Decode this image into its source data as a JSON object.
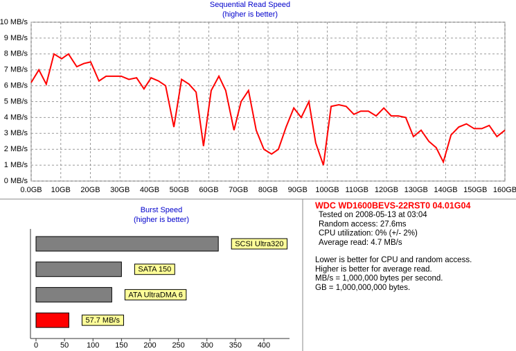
{
  "chart_data": [
    {
      "type": "line",
      "title": "Sequential Read Speed",
      "subtitle": "(higher is better)",
      "color": "#ff0000",
      "grid": true,
      "x": [
        0,
        2.6,
        5.1,
        7.7,
        10.3,
        12.6,
        15.4,
        17.8,
        20.1,
        22.9,
        25.3,
        27.8,
        30.4,
        33,
        35.6,
        38.1,
        40.5,
        43,
        45.4,
        48.2,
        50.8,
        53.3,
        55.7,
        58.2,
        60.8,
        63.4,
        65.7,
        68.5,
        70.9,
        73.4,
        76,
        78.6,
        81.2,
        83.5,
        86.1,
        88.7,
        91.2,
        93.8,
        96.1,
        98.7,
        101.3,
        103.9,
        106.4,
        109,
        111.3,
        113.9,
        116.5,
        119.1,
        121.6,
        124,
        126.5,
        129.1,
        131.7,
        134.3,
        136.8,
        139.2,
        141.8,
        144.4,
        147,
        149.6,
        152.2,
        154.7,
        157.3,
        160
      ],
      "values": [
        6.2,
        7.0,
        6.1,
        8.0,
        7.7,
        8.0,
        7.2,
        7.4,
        7.5,
        6.3,
        6.6,
        6.6,
        6.6,
        6.4,
        6.5,
        5.8,
        6.5,
        6.3,
        6.0,
        3.4,
        6.4,
        6.1,
        5.6,
        2.2,
        5.7,
        6.6,
        5.7,
        3.2,
        5.0,
        5.7,
        3.2,
        2.0,
        1.7,
        2.0,
        3.4,
        4.6,
        4.0,
        5.0,
        2.4,
        1.0,
        4.7,
        4.8,
        4.7,
        4.2,
        4.4,
        4.4,
        4.1,
        4.6,
        4.1,
        4.1,
        4.0,
        2.8,
        3.2,
        2.5,
        2.1,
        1.2,
        2.9,
        3.4,
        3.6,
        3.3,
        3.3,
        3.5,
        2.8,
        3.2
      ],
      "xlim": [
        0,
        160
      ],
      "xticks": [
        {
          "value": 0,
          "label": "0.0GB"
        },
        {
          "value": 10,
          "label": "10GB"
        },
        {
          "value": 20,
          "label": "20GB"
        },
        {
          "value": 30,
          "label": "30GB"
        },
        {
          "value": 40,
          "label": "40GB"
        },
        {
          "value": 50,
          "label": "50GB"
        },
        {
          "value": 60,
          "label": "60GB"
        },
        {
          "value": 70,
          "label": "70GB"
        },
        {
          "value": 80,
          "label": "80GB"
        },
        {
          "value": 90,
          "label": "90GB"
        },
        {
          "value": 100,
          "label": "100GB"
        },
        {
          "value": 110,
          "label": "110GB"
        },
        {
          "value": 120,
          "label": "120GB"
        },
        {
          "value": 130,
          "label": "130GB"
        },
        {
          "value": 140,
          "label": "140GB"
        },
        {
          "value": 150,
          "label": "150GB"
        },
        {
          "value": 160,
          "label": "160GB"
        }
      ],
      "ylim": [
        0,
        10
      ],
      "yticks": [
        {
          "value": 0,
          "label": "0 MB/s"
        },
        {
          "value": 1,
          "label": "1 MB/s"
        },
        {
          "value": 2,
          "label": "2 MB/s"
        },
        {
          "value": 3,
          "label": "3 MB/s"
        },
        {
          "value": 4,
          "label": "4 MB/s"
        },
        {
          "value": 5,
          "label": "5 MB/s"
        },
        {
          "value": 6,
          "label": "6 MB/s"
        },
        {
          "value": 7,
          "label": "7 MB/s"
        },
        {
          "value": 8,
          "label": "8 MB/s"
        },
        {
          "value": 9,
          "label": "9 MB/s"
        },
        {
          "value": 10,
          "label": "10 MB/s"
        }
      ]
    },
    {
      "type": "hbar",
      "title": "Burst Speed",
      "subtitle": "(higher is better)",
      "categories": [
        "SCSI Ultra320",
        "SATA 150",
        "ATA UltraDMA 6",
        null
      ],
      "values": [
        320,
        150,
        133,
        57.7
      ],
      "value_labels": [
        null,
        null,
        null,
        "57.7 MB/s"
      ],
      "colors": [
        "#808080",
        "#808080",
        "#808080",
        "#ff0000"
      ],
      "xlim": [
        0,
        400
      ],
      "xticks": [
        0,
        50,
        100,
        150,
        200,
        250,
        300,
        350,
        400
      ]
    }
  ],
  "info": {
    "title": "WDC WD1600BEVS-22RST0 04.01G04",
    "stats": [
      "Tested on 2008-05-13 at 03:04",
      "Random access: 27.6ms",
      "CPU utilization: 0% (+/- 2%)",
      "Average read: 4.7 MB/s"
    ],
    "notes": [
      "Lower is better for CPU and random access.",
      "Higher is better for average read.",
      "MB/s = 1,000,000 bytes per second.",
      "GB = 1,000,000,000 bytes."
    ]
  }
}
